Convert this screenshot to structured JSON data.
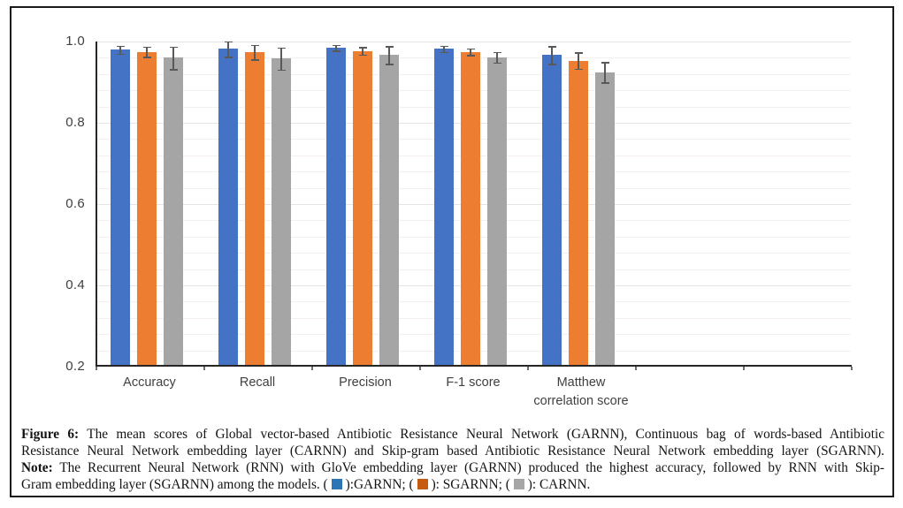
{
  "chart_data": {
    "type": "bar",
    "categories": [
      "Accuracy",
      "Recall",
      "Precision",
      "F-1 score",
      "Matthew correlation score"
    ],
    "category_display": [
      [
        "Accuracy"
      ],
      [
        "Recall"
      ],
      [
        "Precision"
      ],
      [
        "F-1 score"
      ],
      [
        "Matthew",
        "correlation score"
      ]
    ],
    "series": [
      {
        "name": "GARNN",
        "color": "#4472C4",
        "values": [
          0.98,
          0.982,
          0.985,
          0.982,
          0.967
        ],
        "errors": [
          0.01,
          0.019,
          0.007,
          0.008,
          0.022
        ]
      },
      {
        "name": "SGARNN",
        "color": "#ED7D31",
        "values": [
          0.975,
          0.974,
          0.977,
          0.975,
          0.953
        ],
        "errors": [
          0.012,
          0.018,
          0.009,
          0.008,
          0.02
        ]
      },
      {
        "name": "CARNN",
        "color": "#A5A5A5",
        "values": [
          0.96,
          0.958,
          0.967,
          0.961,
          0.925
        ],
        "errors": [
          0.028,
          0.027,
          0.022,
          0.013,
          0.025
        ]
      }
    ],
    "title": "",
    "xlabel": "",
    "ylabel": "",
    "ylim": [
      0.2,
      1.0
    ],
    "ytick_labels": [
      "1.0",
      "0.8",
      "0.6",
      "0.4",
      "0.2"
    ],
    "ytick_values": [
      1.0,
      0.8,
      0.6,
      0.4,
      0.2
    ],
    "minor_grid_step": 0.04,
    "grid": "horizontal-minor",
    "legend_position": "in-caption",
    "error_bars": true,
    "total_category_slots": 7,
    "axis_color": "#262626",
    "error_bar_color": "#595959"
  },
  "caption": {
    "line1_bold": "Figure 6:",
    "line1_rest": " The mean scores of Global vector-based Antibiotic Resistance Neural Network (GARNN), Continuous bag of words-based Antibiotic",
    "line2": "Resistance Neural Network embedding layer (CARNN) and Skip-gram based Antibiotic Resistance Neural Network embedding layer (SGARNN).",
    "line3_bold": "Note:",
    "line3_rest": " The Recurrent Neural Network (RNN) with GloVe embedding layer (GARNN) produced the highest accuracy, followed by RNN with Skip-",
    "line4_prefix": "Gram embedding layer (SGARNN) among the models. (",
    "legend_items": [
      {
        "swatch_color": "#2E75B6",
        "text_after": "):GARNN; ("
      },
      {
        "swatch_color": "#C55A11",
        "text_after": "): SGARNN; ("
      },
      {
        "swatch_color": "#A6A6A6",
        "text_after": "): CARNN."
      }
    ]
  }
}
